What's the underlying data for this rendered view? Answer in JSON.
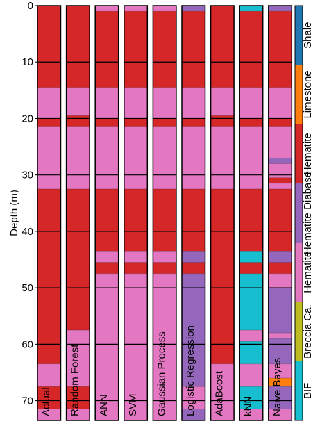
{
  "chart_data": {
    "type": "area",
    "subtype": "lithology-logs",
    "ylabel": "Depth (m)",
    "ylim": [
      0,
      73.5
    ],
    "y_inverted": true,
    "yticks": [
      0,
      10,
      20,
      30,
      40,
      50,
      60,
      70
    ],
    "grid": "horizontal",
    "classes": [
      {
        "code": 0,
        "label": "BIF",
        "color": "#17becf"
      },
      {
        "code": 1,
        "label": "Breccia Ca.",
        "color": "#bcbd22"
      },
      {
        "code": 2,
        "label": "Hematite",
        "color": "#e377c2"
      },
      {
        "code": 3,
        "label": "Hematite Diabase",
        "color": "#9467bd"
      },
      {
        "code": 4,
        "label": "Hematite",
        "color": "#d62728"
      },
      {
        "code": 5,
        "label": "Limestone",
        "color": "#ff7f0e"
      },
      {
        "code": 6,
        "label": "Shale",
        "color": "#1f77b4"
      }
    ],
    "series": [
      {
        "name": "Actual",
        "intervals": [
          [
            0,
            14.5,
            4
          ],
          [
            14.5,
            20,
            2
          ],
          [
            20,
            21.5,
            4
          ],
          [
            21.5,
            32.5,
            2
          ],
          [
            32.5,
            63.5,
            4
          ],
          [
            63.5,
            67.5,
            2
          ],
          [
            67.5,
            71.5,
            4
          ],
          [
            71.5,
            73.5,
            2
          ]
        ]
      },
      {
        "name": "Random Forest",
        "intervals": [
          [
            0,
            14.5,
            4
          ],
          [
            14.5,
            19.5,
            2
          ],
          [
            19.5,
            21.5,
            4
          ],
          [
            21.5,
            32.5,
            2
          ],
          [
            32.5,
            57.5,
            4
          ],
          [
            57.5,
            67.5,
            2
          ],
          [
            67.5,
            71.5,
            4
          ],
          [
            71.5,
            73.5,
            2
          ]
        ]
      },
      {
        "name": "ANN",
        "intervals": [
          [
            0,
            1,
            2
          ],
          [
            1,
            14.5,
            4
          ],
          [
            14.5,
            20,
            2
          ],
          [
            20,
            21.5,
            4
          ],
          [
            21.5,
            32.5,
            2
          ],
          [
            32.5,
            43.5,
            4
          ],
          [
            43.5,
            45.5,
            2
          ],
          [
            45.5,
            47.5,
            4
          ],
          [
            47.5,
            73.5,
            2
          ]
        ]
      },
      {
        "name": "SVM",
        "intervals": [
          [
            0,
            1,
            2
          ],
          [
            1,
            14.5,
            4
          ],
          [
            14.5,
            20,
            2
          ],
          [
            20,
            21.5,
            4
          ],
          [
            21.5,
            32.5,
            2
          ],
          [
            32.5,
            43.5,
            4
          ],
          [
            43.5,
            45.5,
            2
          ],
          [
            45.5,
            47.5,
            4
          ],
          [
            47.5,
            73.5,
            2
          ]
        ]
      },
      {
        "name": "Gaussian Process",
        "intervals": [
          [
            0,
            1,
            2
          ],
          [
            1,
            14.5,
            4
          ],
          [
            14.5,
            20,
            2
          ],
          [
            20,
            21.5,
            4
          ],
          [
            21.5,
            32.5,
            2
          ],
          [
            32.5,
            43.5,
            4
          ],
          [
            43.5,
            45.5,
            2
          ],
          [
            45.5,
            47.5,
            4
          ],
          [
            47.5,
            73.5,
            2
          ]
        ]
      },
      {
        "name": "Logistic Regression",
        "intervals": [
          [
            0,
            1,
            3
          ],
          [
            1,
            14.5,
            4
          ],
          [
            14.5,
            20,
            2
          ],
          [
            20,
            21.5,
            4
          ],
          [
            21.5,
            32.5,
            2
          ],
          [
            32.5,
            43.5,
            4
          ],
          [
            43.5,
            45.5,
            3
          ],
          [
            45.5,
            47.5,
            4
          ],
          [
            47.5,
            67.5,
            3
          ],
          [
            67.5,
            71.5,
            2
          ],
          [
            71.5,
            73.5,
            3
          ]
        ]
      },
      {
        "name": "AdaBoost",
        "intervals": [
          [
            0,
            14.5,
            4
          ],
          [
            14.5,
            19.5,
            2
          ],
          [
            19.5,
            21.5,
            4
          ],
          [
            21.5,
            32.5,
            2
          ],
          [
            32.5,
            63.5,
            4
          ],
          [
            63.5,
            73.5,
            2
          ]
        ]
      },
      {
        "name": "kNN",
        "intervals": [
          [
            0,
            1,
            0
          ],
          [
            1,
            14.5,
            4
          ],
          [
            14.5,
            20,
            2
          ],
          [
            20,
            21.5,
            4
          ],
          [
            21.5,
            32.5,
            2
          ],
          [
            32.5,
            43.5,
            4
          ],
          [
            43.5,
            45.5,
            0
          ],
          [
            45.5,
            47.5,
            4
          ],
          [
            47.5,
            57.5,
            0
          ],
          [
            57.5,
            59.5,
            2
          ],
          [
            59.5,
            63.5,
            0
          ],
          [
            63.5,
            67.5,
            2
          ],
          [
            67.5,
            71.5,
            0
          ],
          [
            71.5,
            73.5,
            2
          ]
        ]
      },
      {
        "name": "Naive Bayes",
        "intervals": [
          [
            0,
            1,
            3
          ],
          [
            1,
            14.5,
            4
          ],
          [
            14.5,
            20,
            2
          ],
          [
            20,
            21.5,
            4
          ],
          [
            21.5,
            27,
            2
          ],
          [
            27,
            28,
            3
          ],
          [
            28,
            30.5,
            2
          ],
          [
            30.5,
            31.5,
            4
          ],
          [
            31.5,
            32.5,
            2
          ],
          [
            32.5,
            43.5,
            4
          ],
          [
            43.5,
            45.5,
            3
          ],
          [
            45.5,
            47.5,
            4
          ],
          [
            47.5,
            50,
            2
          ],
          [
            50,
            58,
            3
          ],
          [
            58,
            59,
            2
          ],
          [
            59,
            63.5,
            3
          ],
          [
            63.5,
            66,
            2
          ],
          [
            66,
            67.5,
            5
          ],
          [
            67.5,
            71.5,
            3
          ],
          [
            71.5,
            73.5,
            2
          ]
        ]
      }
    ]
  }
}
